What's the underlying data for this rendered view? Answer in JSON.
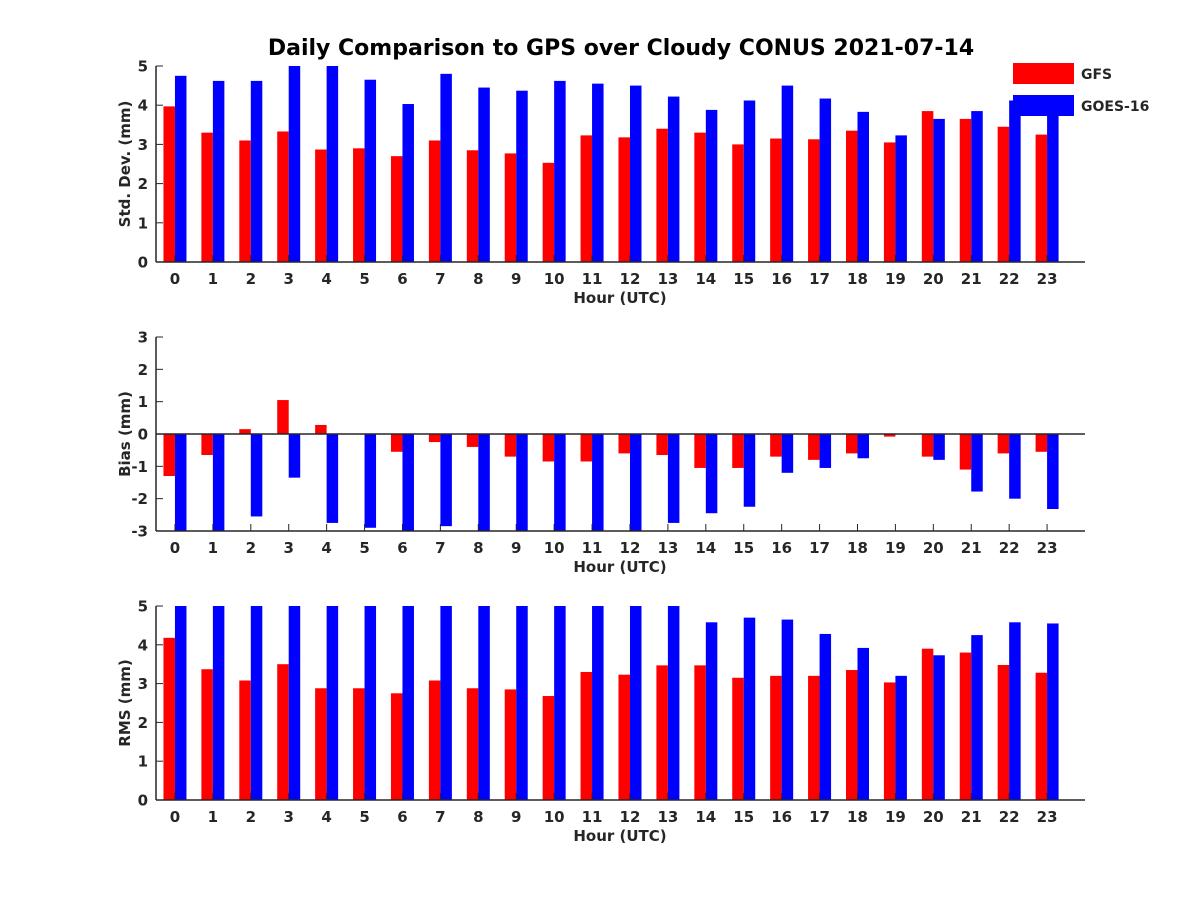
{
  "figure": {
    "title": "Daily Comparison to GPS over Cloudy CONUS 2021-07-14"
  },
  "legend": {
    "items": [
      {
        "label": "GFS",
        "color": "#ff0000"
      },
      {
        "label": "GOES-16",
        "color": "#0000ff"
      }
    ],
    "placement": "top-right"
  },
  "chart_data": [
    {
      "type": "bar",
      "ylabel": "Std. Dev. (mm)",
      "xlabel": "Hour (UTC)",
      "ylim": [
        0,
        5
      ],
      "yticks": [
        0,
        1,
        2,
        3,
        4,
        5
      ],
      "categories": [
        "0",
        "1",
        "2",
        "3",
        "4",
        "5",
        "6",
        "7",
        "8",
        "9",
        "10",
        "11",
        "12",
        "13",
        "14",
        "15",
        "16",
        "17",
        "18",
        "19",
        "20",
        "21",
        "22",
        "23"
      ],
      "series": [
        {
          "name": "GFS",
          "color": "#ff0000",
          "values": [
            3.97,
            3.3,
            3.1,
            3.33,
            2.87,
            2.9,
            2.7,
            3.1,
            2.85,
            2.77,
            2.53,
            3.23,
            3.18,
            3.4,
            3.3,
            3.0,
            3.15,
            3.13,
            3.35,
            3.05,
            3.85,
            3.65,
            3.45,
            3.25
          ]
        },
        {
          "name": "GOES-16",
          "color": "#0000ff",
          "values": [
            4.75,
            4.62,
            4.62,
            5.0,
            5.0,
            4.65,
            4.03,
            4.8,
            4.45,
            4.37,
            4.62,
            4.55,
            4.5,
            4.22,
            3.88,
            4.12,
            4.5,
            4.17,
            3.83,
            3.23,
            3.65,
            3.85,
            4.12,
            3.9
          ]
        }
      ]
    },
    {
      "type": "bar",
      "ylabel": "Bias (mm)",
      "xlabel": "Hour (UTC)",
      "ylim": [
        -3,
        3
      ],
      "yticks": [
        -3,
        -2,
        -1,
        0,
        1,
        2,
        3
      ],
      "categories": [
        "0",
        "1",
        "2",
        "3",
        "4",
        "5",
        "6",
        "7",
        "8",
        "9",
        "10",
        "11",
        "12",
        "13",
        "14",
        "15",
        "16",
        "17",
        "18",
        "19",
        "20",
        "21",
        "22",
        "23"
      ],
      "series": [
        {
          "name": "GFS",
          "color": "#ff0000",
          "values": [
            -1.3,
            -0.65,
            0.15,
            1.05,
            0.28,
            0.0,
            -0.55,
            -0.25,
            -0.4,
            -0.7,
            -0.85,
            -0.85,
            -0.6,
            -0.65,
            -1.05,
            -1.05,
            -0.7,
            -0.8,
            -0.6,
            -0.08,
            -0.7,
            -1.1,
            -0.6,
            -0.55
          ]
        },
        {
          "name": "GOES-16",
          "color": "#0000ff",
          "values": [
            -3.0,
            -3.0,
            -2.55,
            -1.35,
            -2.75,
            -2.9,
            -3.0,
            -2.85,
            -3.0,
            -3.0,
            -3.0,
            -3.0,
            -3.0,
            -2.75,
            -2.45,
            -2.25,
            -1.2,
            -1.05,
            -0.75,
            0.0,
            -0.8,
            -1.78,
            -2.0,
            -2.32
          ]
        }
      ]
    },
    {
      "type": "bar",
      "ylabel": "RMS (mm)",
      "xlabel": "Hour (UTC)",
      "ylim": [
        0,
        5
      ],
      "yticks": [
        0,
        1,
        2,
        3,
        4,
        5
      ],
      "categories": [
        "0",
        "1",
        "2",
        "3",
        "4",
        "5",
        "6",
        "7",
        "8",
        "9",
        "10",
        "11",
        "12",
        "13",
        "14",
        "15",
        "16",
        "17",
        "18",
        "19",
        "20",
        "21",
        "22",
        "23"
      ],
      "series": [
        {
          "name": "GFS",
          "color": "#ff0000",
          "values": [
            4.18,
            3.37,
            3.08,
            3.5,
            2.88,
            2.88,
            2.75,
            3.08,
            2.88,
            2.85,
            2.68,
            3.3,
            3.23,
            3.47,
            3.47,
            3.15,
            3.2,
            3.2,
            3.35,
            3.03,
            3.9,
            3.8,
            3.48,
            3.28
          ]
        },
        {
          "name": "GOES-16",
          "color": "#0000ff",
          "values": [
            5.0,
            5.0,
            5.0,
            5.0,
            5.0,
            5.0,
            5.0,
            5.0,
            5.0,
            5.0,
            5.0,
            5.0,
            5.0,
            5.0,
            4.58,
            4.7,
            4.65,
            4.28,
            3.92,
            3.2,
            3.73,
            4.25,
            4.58,
            4.55
          ]
        }
      ]
    }
  ]
}
